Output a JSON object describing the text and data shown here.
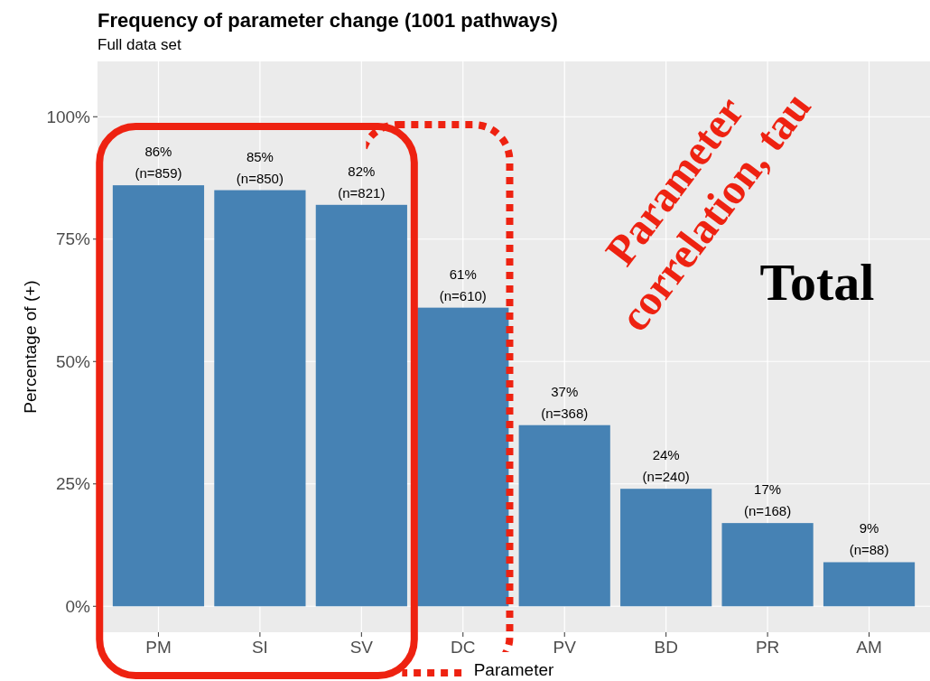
{
  "chart_data": {
    "type": "bar",
    "title": "Frequency of parameter change (1001 pathways)",
    "subtitle": "Full data set",
    "xlabel": "Parameter",
    "ylabel": "Percentage of (+)",
    "categories": [
      "PM",
      "SI",
      "SV",
      "DC",
      "PV",
      "BD",
      "PR",
      "AM"
    ],
    "values": [
      86,
      85,
      82,
      61,
      37,
      24,
      17,
      9
    ],
    "value_labels": [
      "86%\n(n=859)",
      "85%\n(n=850)",
      "82%\n(n=821)",
      "61%\n(n=610)",
      "37%\n(n=368)",
      "24%\n(n=240)",
      "17%\n(n=168)",
      "9%\n(n=88)"
    ],
    "color": "#4682b4",
    "ylim": [
      -5.3,
      111.3
    ],
    "yticks": [
      {
        "value": 0,
        "label": "0%"
      },
      {
        "value": 25,
        "label": "25%"
      },
      {
        "value": 50,
        "label": "50%"
      },
      {
        "value": 75,
        "label": "75%"
      },
      {
        "value": 100,
        "label": "100%"
      }
    ],
    "grid": true,
    "annotations": [
      "Parameter\ncorrelation, tau",
      "Total"
    ]
  }
}
